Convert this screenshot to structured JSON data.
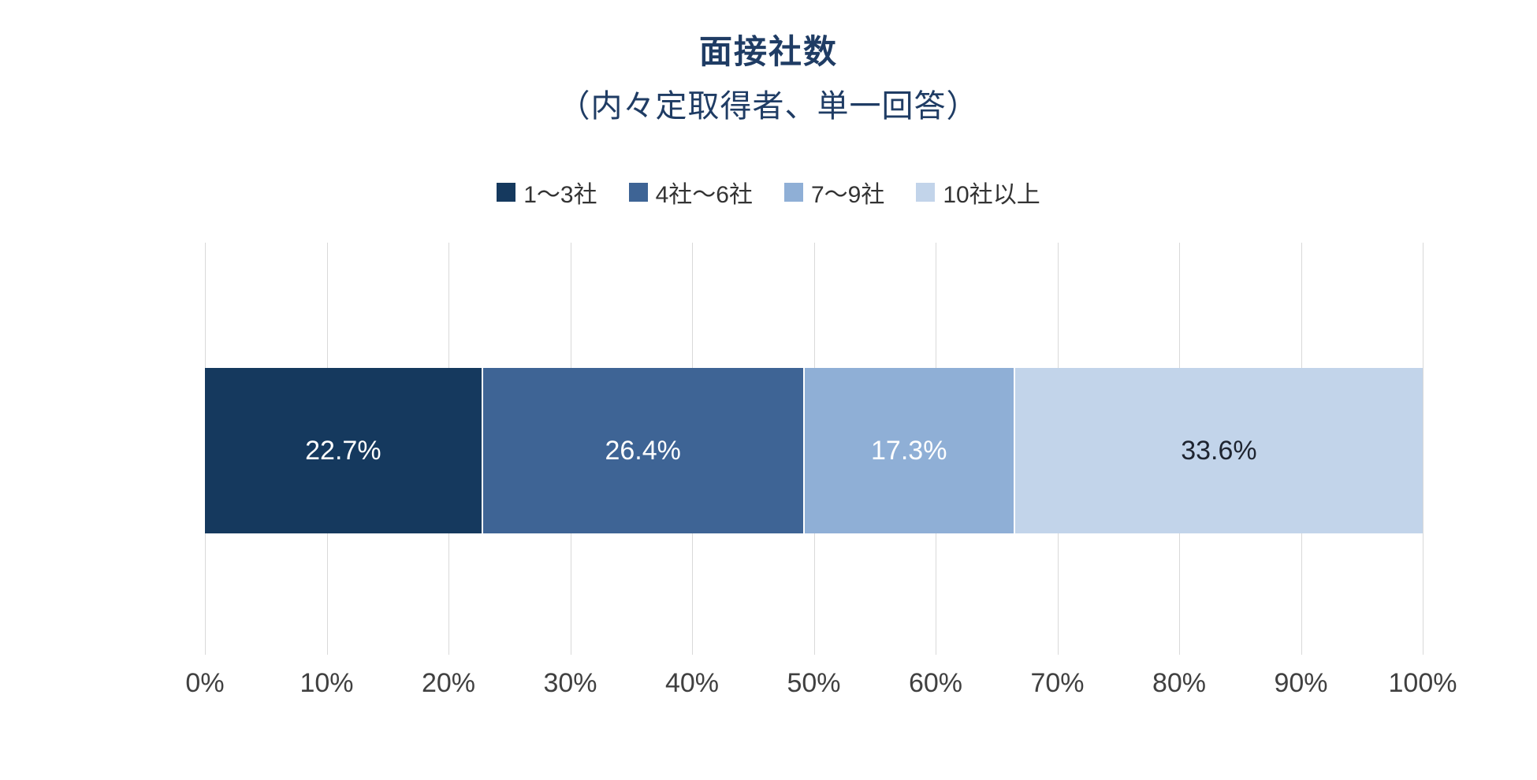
{
  "chart_data": {
    "type": "bar",
    "variant": "horizontal-100pct-stacked",
    "title": "面接社数",
    "subtitle": "（内々定取得者、単一回答）",
    "categories": [
      "1〜3社",
      "4社〜6社",
      "7〜9社",
      "10社以上"
    ],
    "values": [
      22.7,
      26.4,
      17.3,
      33.6
    ],
    "data_labels": [
      "22.7%",
      "26.4%",
      "17.3%",
      "33.6%"
    ],
    "series_colors": [
      "#15395E",
      "#3E6495",
      "#8FAFD6",
      "#C2D4EA"
    ],
    "data_label_colors": [
      "#FFFFFF",
      "#FFFFFF",
      "#FFFFFF",
      "#1E2430"
    ],
    "xlabel": "",
    "ylabel": "",
    "xlim": [
      0,
      100
    ],
    "x_tick_values": [
      0,
      10,
      20,
      30,
      40,
      50,
      60,
      70,
      80,
      90,
      100
    ],
    "x_tick_labels": [
      "0%",
      "10%",
      "20%",
      "30%",
      "40%",
      "50%",
      "60%",
      "70%",
      "80%",
      "90%",
      "100%"
    ],
    "grid": "vertical",
    "gridline_color": "#D9D9D9",
    "legend_position": "top",
    "colors": {
      "title": "#1F3C64",
      "axis_labels": "#404040",
      "legend_text": "#333333",
      "background": "#FFFFFF",
      "segment_separator": "#FFFFFF"
    }
  }
}
